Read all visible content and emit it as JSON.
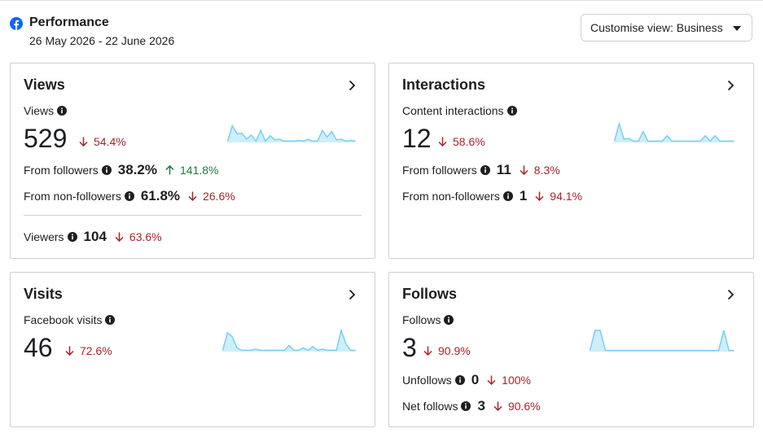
{
  "header": {
    "title": "Performance",
    "date_range": "26 May 2026 - 22 June 2026",
    "customise_label": "Customise view: Business"
  },
  "colors": {
    "down": "#a8232d",
    "up": "#1d7a3e",
    "spark_line": "#7ccdf2",
    "spark_fill": "#cdeefb",
    "facebook": "#0866ff"
  },
  "views": {
    "title": "Views",
    "metric_label": "Views",
    "value": "529",
    "change": "54.4%",
    "change_dir": "down",
    "from_followers_label": "From followers",
    "from_followers_value": "38.2%",
    "from_followers_change": "141.8%",
    "from_followers_dir": "up",
    "from_non_followers_label": "From non-followers",
    "from_non_followers_value": "61.8%",
    "from_non_followers_change": "26.6%",
    "viewers_label": "Viewers",
    "viewers_value": "104",
    "viewers_change": "63.6%"
  },
  "interactions": {
    "title": "Interactions",
    "metric_label": "Content interactions",
    "value": "12",
    "change": "58.6%",
    "from_followers_label": "From followers",
    "from_followers_value": "11",
    "from_followers_change": "8.3%",
    "from_non_followers_label": "From non-followers",
    "from_non_followers_value": "1",
    "from_non_followers_change": "94.1%"
  },
  "visits": {
    "title": "Visits",
    "metric_label": "Facebook visits",
    "value": "46",
    "change": "72.6%"
  },
  "follows": {
    "title": "Follows",
    "metric_label": "Follows",
    "value": "3",
    "change": "90.9%",
    "unfollows_label": "Unfollows",
    "unfollows_value": "0",
    "unfollows_change": "100%",
    "net_follows_label": "Net follows",
    "net_follows_value": "3",
    "net_follows_change": "90.6%"
  },
  "sparklines": {
    "views": [
      0.05,
      0.62,
      0.32,
      0.35,
      0.12,
      0.28,
      0.05,
      0.45,
      0.05,
      0.25,
      0.1,
      0.12,
      0.05,
      0.05,
      0.05,
      0.08,
      0.05,
      0.12,
      0.05,
      0.05,
      0.45,
      0.2,
      0.4,
      0.1,
      0.12,
      0.05,
      0.08,
      0.05
    ],
    "interactions": [
      0.05,
      0.7,
      0.12,
      0.15,
      0.05,
      0.05,
      0.4,
      0.05,
      0.05,
      0.05,
      0.05,
      0.25,
      0.05,
      0.05,
      0.05,
      0.05,
      0.05,
      0.05,
      0.05,
      0.25,
      0.05,
      0.25,
      0.05,
      0.05,
      0.05,
      0.05
    ],
    "visits": [
      0.05,
      0.75,
      0.6,
      0.15,
      0.05,
      0.05,
      0.05,
      0.1,
      0.05,
      0.05,
      0.05,
      0.05,
      0.05,
      0.05,
      0.25,
      0.05,
      0.05,
      0.15,
      0.05,
      0.2,
      0.05,
      0.1,
      0.05,
      0.05,
      0.05,
      0.85,
      0.3,
      0.05,
      0.05
    ],
    "follows": [
      0.05,
      0.9,
      0.9,
      0.05,
      0.05,
      0.05,
      0.05,
      0.05,
      0.05,
      0.05,
      0.05,
      0.05,
      0.05,
      0.05,
      0.05,
      0.05,
      0.05,
      0.05,
      0.05,
      0.05,
      0.05,
      0.05,
      0.05,
      0.05,
      0.05,
      0.05,
      0.9,
      0.05,
      0.05
    ]
  }
}
